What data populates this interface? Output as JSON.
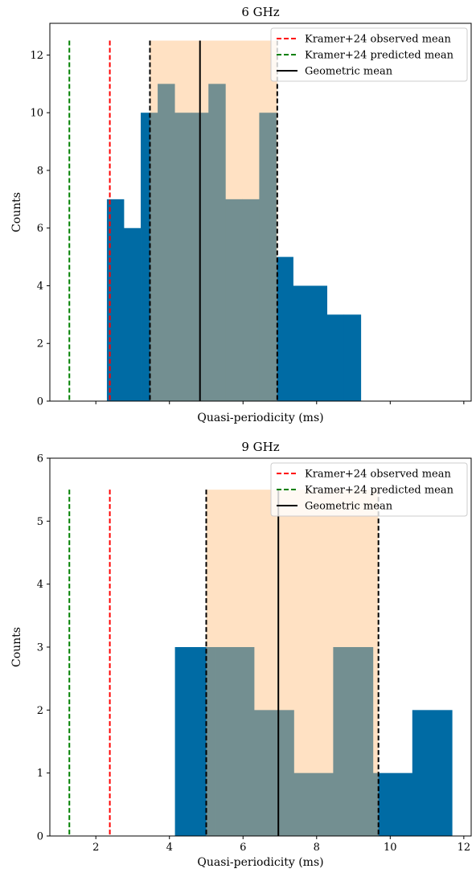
{
  "chart_data": [
    {
      "type": "bar",
      "title": "6 GHz",
      "xlabel": "Quasi-periodicity (ms)",
      "ylabel": "Counts",
      "xlim": [
        0.75,
        12.2
      ],
      "ylim": [
        0,
        13.1
      ],
      "xticks": [
        2,
        4,
        6,
        8,
        10,
        12
      ],
      "show_xtick_labels": false,
      "yticks": [
        0,
        2,
        4,
        6,
        8,
        10,
        12
      ],
      "histogram": {
        "bin_edges": [
          2.3,
          2.76,
          3.22,
          3.68,
          4.14,
          4.6,
          5.06,
          5.52,
          5.98,
          6.44,
          6.9,
          7.36,
          7.82,
          8.28,
          8.74,
          9.2
        ],
        "counts": [
          7,
          6,
          10,
          11,
          10,
          10,
          11,
          7,
          7,
          10,
          5,
          4,
          4,
          3,
          3
        ],
        "color": "#006BA4"
      },
      "shaded_region": {
        "x": [
          3.47,
          6.93
        ],
        "y_top": 12.5,
        "color": "#FFBC79",
        "alpha": 0.45
      },
      "vlines": [
        {
          "label": "Kramer+24 observed mean",
          "x": 2.38,
          "color": "#FF0000",
          "style": "dashed"
        },
        {
          "label": "Kramer+24 predicted mean",
          "x": 1.28,
          "color": "#008000",
          "style": "dashed"
        },
        {
          "label": "Geometric mean",
          "x": 4.83,
          "color": "#000000",
          "style": "solid"
        },
        {
          "label": "",
          "x": 3.47,
          "color": "#000000",
          "style": "dashed"
        },
        {
          "label": "",
          "x": 6.93,
          "color": "#000000",
          "style": "dashed"
        }
      ],
      "vline_top": 12.5,
      "legend": "top-right"
    },
    {
      "type": "bar",
      "title": "9 GHz",
      "xlabel": "Quasi-periodicity (ms)",
      "ylabel": "Counts",
      "xlim": [
        0.75,
        12.2
      ],
      "ylim": [
        0,
        6
      ],
      "xticks": [
        2,
        4,
        6,
        8,
        10,
        12
      ],
      "show_xtick_labels": true,
      "yticks": [
        0,
        1,
        2,
        3,
        4,
        5,
        6
      ],
      "histogram": {
        "bin_edges": [
          4.15,
          5.23,
          6.3,
          7.38,
          8.45,
          9.53,
          10.6,
          11.68
        ],
        "counts": [
          3,
          3,
          2,
          1,
          3,
          1,
          2
        ],
        "color": "#006BA4"
      },
      "shaded_region": {
        "x": [
          5.0,
          9.68
        ],
        "y_top": 5.5,
        "color": "#FFBC79",
        "alpha": 0.45
      },
      "vlines": [
        {
          "label": "Kramer+24 observed mean",
          "x": 2.38,
          "color": "#FF0000",
          "style": "dashed"
        },
        {
          "label": "Kramer+24 predicted mean",
          "x": 1.28,
          "color": "#008000",
          "style": "dashed"
        },
        {
          "label": "Geometric mean",
          "x": 6.96,
          "color": "#000000",
          "style": "solid"
        },
        {
          "label": "",
          "x": 5.0,
          "color": "#000000",
          "style": "dashed"
        },
        {
          "label": "",
          "x": 9.68,
          "color": "#000000",
          "style": "dashed"
        }
      ],
      "vline_top": 5.5,
      "legend": "top-right"
    }
  ]
}
